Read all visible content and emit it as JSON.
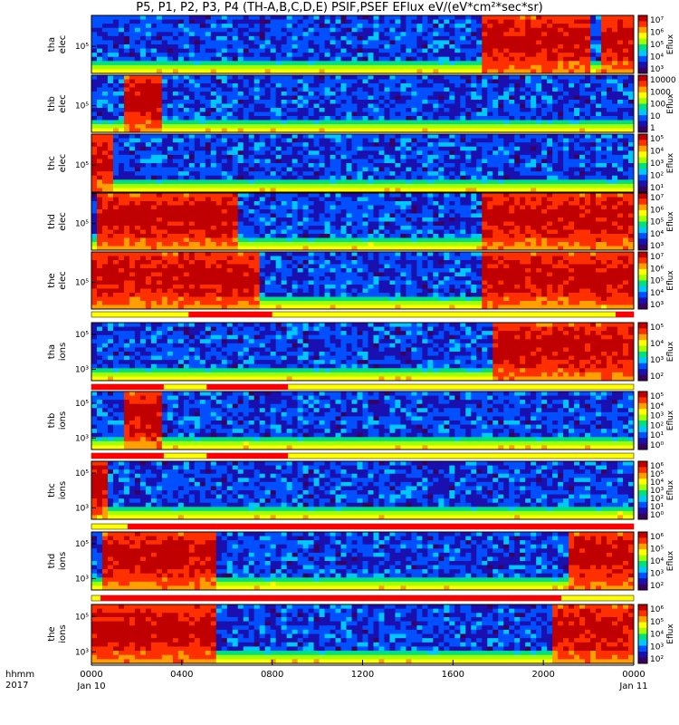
{
  "chart_data": {
    "type": "heatmap",
    "title": "P5, P1, P2, P3, P4 (TH-A,B,C,D,E) PSIF,PSEF EFlux eV/(eV*cm²*sec*sr)",
    "x_axis": {
      "label_lines": [
        "hhmm",
        "2017"
      ],
      "ticks": [
        "0000",
        "0400",
        "0800",
        "1200",
        "1600",
        "2000",
        "0000"
      ],
      "date_labels": [
        "Jan 10",
        "Jan 11"
      ],
      "range_hours": [
        0,
        24
      ]
    },
    "colorbar_label": "Eflux",
    "panels": [
      {
        "probe": "tha",
        "species": "elec",
        "ytick": "10⁵",
        "cbar_ticks": [
          "10⁷",
          "10⁶",
          "10⁵",
          "10⁴",
          "10³"
        ],
        "hot_intervals_h": [
          [
            17.3,
            22.2
          ],
          [
            22.6,
            24.0
          ]
        ]
      },
      {
        "probe": "thb",
        "species": "elec",
        "ytick": "10⁵",
        "cbar_ticks": [
          "10000",
          "1000",
          "100",
          "10",
          "1"
        ],
        "hot_intervals_h": [
          [
            1.4,
            3.2
          ]
        ]
      },
      {
        "probe": "thc",
        "species": "elec",
        "ytick": "10⁵",
        "cbar_ticks": [
          "10⁵",
          "10⁴",
          "10³",
          "10²",
          "10¹"
        ],
        "hot_intervals_h": [
          [
            0.0,
            0.9
          ]
        ]
      },
      {
        "probe": "thd",
        "species": "elec",
        "ytick": "10⁵",
        "cbar_ticks": [
          "10⁷",
          "10⁶",
          "10⁵",
          "10⁴",
          "10³"
        ],
        "hot_intervals_h": [
          [
            0.3,
            6.5
          ],
          [
            17.3,
            24.0
          ]
        ]
      },
      {
        "probe": "the",
        "species": "elec",
        "ytick": "10⁵",
        "cbar_ticks": [
          "10⁷",
          "10⁶",
          "10⁵",
          "10⁴",
          "10³"
        ],
        "hot_intervals_h": [
          [
            0.0,
            7.5
          ],
          [
            17.3,
            24.0
          ]
        ]
      },
      {
        "probe": "tha",
        "species": "ions",
        "yticks": [
          "10⁵",
          "10³"
        ],
        "cbar_ticks": [
          "10⁵",
          "10⁴",
          "10³",
          "10²"
        ],
        "hot_intervals_h": [
          [
            17.8,
            24.0
          ]
        ]
      },
      {
        "probe": "thb",
        "species": "ions",
        "yticks": [
          "10⁵",
          "10³"
        ],
        "cbar_ticks": [
          "10⁵",
          "10⁴",
          "10³",
          "10²",
          "10¹",
          "10⁰"
        ],
        "hot_intervals_h": [
          [
            1.4,
            3.2
          ]
        ]
      },
      {
        "probe": "thc",
        "species": "ions",
        "yticks": [
          "10⁵",
          "10³"
        ],
        "cbar_ticks": [
          "10⁶",
          "10⁵",
          "10⁴",
          "10³",
          "10²",
          "10¹",
          "10⁰"
        ],
        "hot_intervals_h": [
          [
            0.0,
            0.8
          ]
        ]
      },
      {
        "probe": "thd",
        "species": "ions",
        "yticks": [
          "10⁵",
          "10³"
        ],
        "cbar_ticks": [
          "10⁶",
          "10⁵",
          "10⁴",
          "10³",
          "10²"
        ],
        "hot_intervals_h": [
          [
            0.4,
            5.5
          ],
          [
            21.2,
            24.0
          ]
        ]
      },
      {
        "probe": "the",
        "species": "ions",
        "yticks": [
          "10⁵",
          "10³"
        ],
        "cbar_ticks": [
          "10⁶",
          "10⁵",
          "10⁴",
          "10³",
          "10²"
        ],
        "hot_intervals_h": [
          [
            0.0,
            5.5
          ],
          [
            20.3,
            24.0
          ]
        ]
      }
    ],
    "mode_bars": [
      {
        "after_panel": 5,
        "red_intervals_h": [
          [
            4.3,
            8.0
          ],
          [
            23.2,
            24.0
          ]
        ]
      },
      {
        "after_panel": 6,
        "red_intervals_h": [
          [
            0.0,
            3.2
          ],
          [
            5.1,
            8.7
          ]
        ]
      },
      {
        "after_panel": 7,
        "red_intervals_h": [
          [
            0.0,
            3.2
          ],
          [
            5.1,
            8.7
          ]
        ]
      },
      {
        "after_panel": 8,
        "red_intervals_h": [
          [
            1.6,
            24.0
          ]
        ]
      },
      {
        "after_panel": 9,
        "red_intervals_h": [
          [
            0.4,
            20.8
          ]
        ]
      }
    ],
    "colors": {
      "scale": [
        "#3a0060",
        "#1a10b0",
        "#0050ff",
        "#00c8ff",
        "#00e080",
        "#a0ff00",
        "#ffff00",
        "#ffa000",
        "#ff3000",
        "#c00000"
      ],
      "mode_red": "#ff0000",
      "mode_yellow": "#ffff00"
    }
  }
}
